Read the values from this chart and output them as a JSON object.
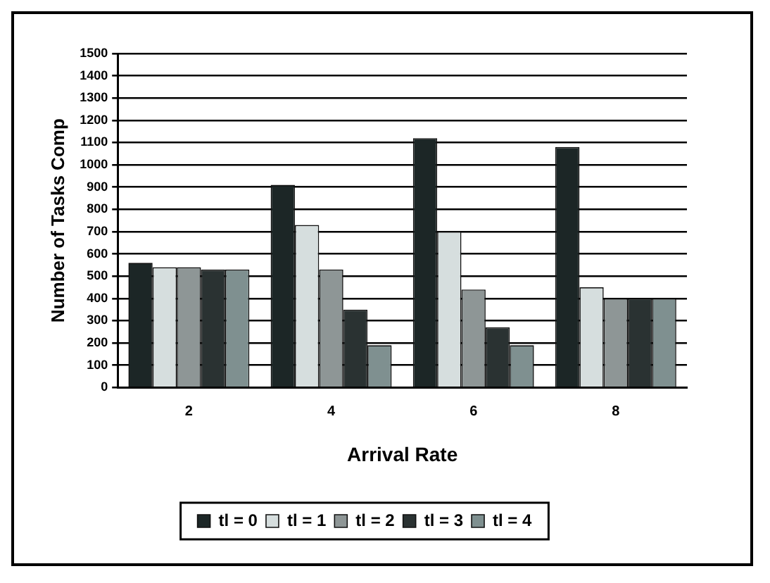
{
  "chart_data": {
    "type": "bar",
    "xlabel": "Arrival Rate",
    "ylabel": "Number of Tasks Comp",
    "categories": [
      "2",
      "4",
      "6",
      "8"
    ],
    "series": [
      {
        "name": "tl = 0",
        "color": "#1c2626",
        "values": [
          560,
          910,
          1120,
          1080
        ]
      },
      {
        "name": "tl = 1",
        "color": "#d6dede",
        "values": [
          540,
          730,
          700,
          450
        ]
      },
      {
        "name": "tl = 2",
        "color": "#8e9696",
        "values": [
          540,
          530,
          440,
          400
        ]
      },
      {
        "name": "tl = 3",
        "color": "#2a3232",
        "values": [
          530,
          350,
          270,
          400
        ]
      },
      {
        "name": "tl = 4",
        "color": "#7f9090",
        "values": [
          530,
          190,
          190,
          400
        ]
      }
    ],
    "ylim": [
      0,
      1500
    ],
    "yticks": [
      0,
      100,
      200,
      300,
      400,
      500,
      600,
      700,
      800,
      900,
      1000,
      1100,
      1200,
      1300,
      1400,
      1500
    ],
    "grid": "y",
    "legend": "bottom"
  }
}
